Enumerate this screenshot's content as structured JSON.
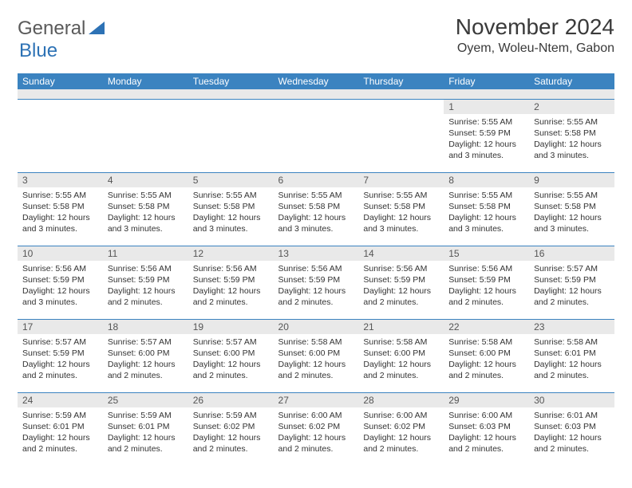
{
  "logo": {
    "general": "General",
    "blue": "Blue"
  },
  "colors": {
    "header_bg": "#3b83c0",
    "header_text": "#ffffff",
    "daynum_bg": "#e9e9e9",
    "border": "#3b83c0",
    "logo_gray": "#5a5a5a",
    "logo_blue": "#2d72b5"
  },
  "title": "November 2024",
  "location": "Oyem, Woleu-Ntem, Gabon",
  "weekdays": [
    "Sunday",
    "Monday",
    "Tuesday",
    "Wednesday",
    "Thursday",
    "Friday",
    "Saturday"
  ],
  "weeks": [
    [
      null,
      null,
      null,
      null,
      null,
      {
        "n": "1",
        "sr": "Sunrise: 5:55 AM",
        "ss": "Sunset: 5:59 PM",
        "d1": "Daylight: 12 hours",
        "d2": "and 3 minutes."
      },
      {
        "n": "2",
        "sr": "Sunrise: 5:55 AM",
        "ss": "Sunset: 5:58 PM",
        "d1": "Daylight: 12 hours",
        "d2": "and 3 minutes."
      }
    ],
    [
      {
        "n": "3",
        "sr": "Sunrise: 5:55 AM",
        "ss": "Sunset: 5:58 PM",
        "d1": "Daylight: 12 hours",
        "d2": "and 3 minutes."
      },
      {
        "n": "4",
        "sr": "Sunrise: 5:55 AM",
        "ss": "Sunset: 5:58 PM",
        "d1": "Daylight: 12 hours",
        "d2": "and 3 minutes."
      },
      {
        "n": "5",
        "sr": "Sunrise: 5:55 AM",
        "ss": "Sunset: 5:58 PM",
        "d1": "Daylight: 12 hours",
        "d2": "and 3 minutes."
      },
      {
        "n": "6",
        "sr": "Sunrise: 5:55 AM",
        "ss": "Sunset: 5:58 PM",
        "d1": "Daylight: 12 hours",
        "d2": "and 3 minutes."
      },
      {
        "n": "7",
        "sr": "Sunrise: 5:55 AM",
        "ss": "Sunset: 5:58 PM",
        "d1": "Daylight: 12 hours",
        "d2": "and 3 minutes."
      },
      {
        "n": "8",
        "sr": "Sunrise: 5:55 AM",
        "ss": "Sunset: 5:58 PM",
        "d1": "Daylight: 12 hours",
        "d2": "and 3 minutes."
      },
      {
        "n": "9",
        "sr": "Sunrise: 5:55 AM",
        "ss": "Sunset: 5:58 PM",
        "d1": "Daylight: 12 hours",
        "d2": "and 3 minutes."
      }
    ],
    [
      {
        "n": "10",
        "sr": "Sunrise: 5:56 AM",
        "ss": "Sunset: 5:59 PM",
        "d1": "Daylight: 12 hours",
        "d2": "and 3 minutes."
      },
      {
        "n": "11",
        "sr": "Sunrise: 5:56 AM",
        "ss": "Sunset: 5:59 PM",
        "d1": "Daylight: 12 hours",
        "d2": "and 2 minutes."
      },
      {
        "n": "12",
        "sr": "Sunrise: 5:56 AM",
        "ss": "Sunset: 5:59 PM",
        "d1": "Daylight: 12 hours",
        "d2": "and 2 minutes."
      },
      {
        "n": "13",
        "sr": "Sunrise: 5:56 AM",
        "ss": "Sunset: 5:59 PM",
        "d1": "Daylight: 12 hours",
        "d2": "and 2 minutes."
      },
      {
        "n": "14",
        "sr": "Sunrise: 5:56 AM",
        "ss": "Sunset: 5:59 PM",
        "d1": "Daylight: 12 hours",
        "d2": "and 2 minutes."
      },
      {
        "n": "15",
        "sr": "Sunrise: 5:56 AM",
        "ss": "Sunset: 5:59 PM",
        "d1": "Daylight: 12 hours",
        "d2": "and 2 minutes."
      },
      {
        "n": "16",
        "sr": "Sunrise: 5:57 AM",
        "ss": "Sunset: 5:59 PM",
        "d1": "Daylight: 12 hours",
        "d2": "and 2 minutes."
      }
    ],
    [
      {
        "n": "17",
        "sr": "Sunrise: 5:57 AM",
        "ss": "Sunset: 5:59 PM",
        "d1": "Daylight: 12 hours",
        "d2": "and 2 minutes."
      },
      {
        "n": "18",
        "sr": "Sunrise: 5:57 AM",
        "ss": "Sunset: 6:00 PM",
        "d1": "Daylight: 12 hours",
        "d2": "and 2 minutes."
      },
      {
        "n": "19",
        "sr": "Sunrise: 5:57 AM",
        "ss": "Sunset: 6:00 PM",
        "d1": "Daylight: 12 hours",
        "d2": "and 2 minutes."
      },
      {
        "n": "20",
        "sr": "Sunrise: 5:58 AM",
        "ss": "Sunset: 6:00 PM",
        "d1": "Daylight: 12 hours",
        "d2": "and 2 minutes."
      },
      {
        "n": "21",
        "sr": "Sunrise: 5:58 AM",
        "ss": "Sunset: 6:00 PM",
        "d1": "Daylight: 12 hours",
        "d2": "and 2 minutes."
      },
      {
        "n": "22",
        "sr": "Sunrise: 5:58 AM",
        "ss": "Sunset: 6:00 PM",
        "d1": "Daylight: 12 hours",
        "d2": "and 2 minutes."
      },
      {
        "n": "23",
        "sr": "Sunrise: 5:58 AM",
        "ss": "Sunset: 6:01 PM",
        "d1": "Daylight: 12 hours",
        "d2": "and 2 minutes."
      }
    ],
    [
      {
        "n": "24",
        "sr": "Sunrise: 5:59 AM",
        "ss": "Sunset: 6:01 PM",
        "d1": "Daylight: 12 hours",
        "d2": "and 2 minutes."
      },
      {
        "n": "25",
        "sr": "Sunrise: 5:59 AM",
        "ss": "Sunset: 6:01 PM",
        "d1": "Daylight: 12 hours",
        "d2": "and 2 minutes."
      },
      {
        "n": "26",
        "sr": "Sunrise: 5:59 AM",
        "ss": "Sunset: 6:02 PM",
        "d1": "Daylight: 12 hours",
        "d2": "and 2 minutes."
      },
      {
        "n": "27",
        "sr": "Sunrise: 6:00 AM",
        "ss": "Sunset: 6:02 PM",
        "d1": "Daylight: 12 hours",
        "d2": "and 2 minutes."
      },
      {
        "n": "28",
        "sr": "Sunrise: 6:00 AM",
        "ss": "Sunset: 6:02 PM",
        "d1": "Daylight: 12 hours",
        "d2": "and 2 minutes."
      },
      {
        "n": "29",
        "sr": "Sunrise: 6:00 AM",
        "ss": "Sunset: 6:03 PM",
        "d1": "Daylight: 12 hours",
        "d2": "and 2 minutes."
      },
      {
        "n": "30",
        "sr": "Sunrise: 6:01 AM",
        "ss": "Sunset: 6:03 PM",
        "d1": "Daylight: 12 hours",
        "d2": "and 2 minutes."
      }
    ]
  ]
}
